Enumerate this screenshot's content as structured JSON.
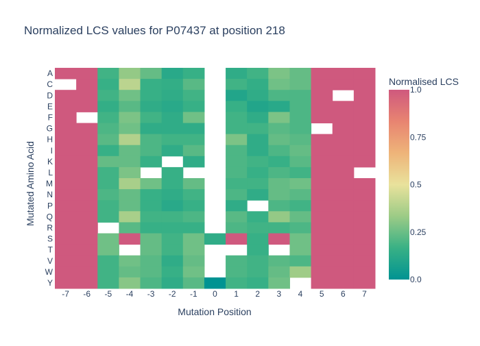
{
  "chart_data": {
    "type": "heatmap",
    "title": "Normalized LCS values for P07437 at position 218",
    "xlabel": "Mutation Position",
    "ylabel": "Mutated Amino Acid",
    "x": [
      "-7",
      "-6",
      "-5",
      "-4",
      "-3",
      "-2",
      "-1",
      "0",
      "1",
      "2",
      "3",
      "4",
      "5",
      "6",
      "7"
    ],
    "y": [
      "A",
      "C",
      "D",
      "E",
      "F",
      "G",
      "H",
      "I",
      "K",
      "L",
      "M",
      "N",
      "P",
      "Q",
      "R",
      "S",
      "T",
      "V",
      "W",
      "Y"
    ],
    "z": [
      [
        1.0,
        1.0,
        0.18,
        0.32,
        0.24,
        0.12,
        0.16,
        null,
        0.14,
        0.18,
        0.28,
        0.24,
        1.0,
        1.0,
        1.0
      ],
      [
        null,
        1.0,
        0.16,
        0.4,
        0.16,
        0.15,
        0.22,
        null,
        0.18,
        0.15,
        0.26,
        0.24,
        1.0,
        1.0,
        1.0
      ],
      [
        1.0,
        1.0,
        0.18,
        0.26,
        0.16,
        0.14,
        0.18,
        null,
        0.1,
        0.14,
        0.2,
        0.2,
        1.0,
        null,
        1.0
      ],
      [
        1.0,
        1.0,
        0.15,
        0.22,
        0.14,
        0.12,
        0.16,
        null,
        0.16,
        0.1,
        0.12,
        0.2,
        1.0,
        1.0,
        1.0
      ],
      [
        1.0,
        null,
        0.18,
        0.28,
        0.18,
        0.14,
        0.26,
        null,
        0.18,
        0.14,
        0.28,
        0.2,
        1.0,
        1.0,
        1.0
      ],
      [
        1.0,
        1.0,
        0.2,
        0.26,
        0.14,
        0.14,
        0.14,
        null,
        0.18,
        0.18,
        0.22,
        0.2,
        null,
        1.0,
        1.0
      ],
      [
        1.0,
        1.0,
        0.22,
        0.38,
        0.2,
        0.18,
        0.18,
        null,
        0.28,
        0.14,
        0.24,
        0.22,
        1.0,
        1.0,
        1.0
      ],
      [
        1.0,
        1.0,
        0.16,
        0.24,
        0.2,
        0.14,
        0.22,
        null,
        0.2,
        0.14,
        0.2,
        0.24,
        1.0,
        1.0,
        1.0
      ],
      [
        1.0,
        1.0,
        0.24,
        0.24,
        0.16,
        null,
        0.14,
        null,
        0.2,
        0.18,
        0.16,
        0.22,
        1.0,
        1.0,
        1.0
      ],
      [
        1.0,
        1.0,
        0.18,
        0.28,
        null,
        0.16,
        null,
        null,
        0.2,
        0.16,
        0.2,
        0.18,
        1.0,
        1.0,
        null
      ],
      [
        1.0,
        1.0,
        0.18,
        0.36,
        0.26,
        0.16,
        0.24,
        null,
        0.18,
        0.18,
        0.24,
        0.26,
        1.0,
        1.0,
        1.0
      ],
      [
        1.0,
        1.0,
        0.2,
        0.24,
        0.16,
        0.14,
        0.18,
        null,
        0.2,
        0.14,
        0.24,
        0.22,
        1.0,
        1.0,
        1.0
      ],
      [
        1.0,
        1.0,
        0.18,
        0.24,
        0.16,
        0.12,
        0.16,
        null,
        0.14,
        null,
        0.2,
        0.18,
        1.0,
        1.0,
        1.0
      ],
      [
        1.0,
        1.0,
        0.18,
        0.36,
        0.18,
        0.18,
        0.2,
        null,
        0.22,
        0.16,
        0.32,
        0.24,
        1.0,
        1.0,
        1.0
      ],
      [
        1.0,
        1.0,
        null,
        0.22,
        0.16,
        0.16,
        0.16,
        null,
        0.2,
        0.18,
        0.18,
        0.2,
        1.0,
        1.0,
        1.0
      ],
      [
        1.0,
        1.0,
        0.26,
        1.0,
        0.24,
        0.18,
        0.26,
        0.14,
        1.0,
        0.16,
        1.0,
        0.26,
        1.0,
        1.0,
        1.0
      ],
      [
        1.0,
        1.0,
        0.26,
        null,
        0.24,
        0.18,
        0.26,
        null,
        null,
        0.16,
        null,
        0.26,
        1.0,
        1.0,
        1.0
      ],
      [
        1.0,
        1.0,
        0.18,
        0.26,
        0.22,
        0.14,
        0.24,
        null,
        0.2,
        0.18,
        0.22,
        0.2,
        1.0,
        1.0,
        1.0
      ],
      [
        1.0,
        1.0,
        0.18,
        0.24,
        0.22,
        0.16,
        0.26,
        null,
        0.2,
        0.18,
        0.24,
        0.34,
        1.0,
        1.0,
        1.0
      ],
      [
        1.0,
        1.0,
        0.18,
        0.3,
        0.2,
        0.14,
        0.22,
        0.0,
        0.18,
        0.16,
        0.26,
        null,
        1.0,
        1.0,
        1.0
      ]
    ],
    "zlim": [
      0,
      1
    ],
    "colorscale": [
      [
        0.0,
        "#009392"
      ],
      [
        0.167,
        "#39b185"
      ],
      [
        0.333,
        "#9ccb86"
      ],
      [
        0.5,
        "#e9e29c"
      ],
      [
        0.667,
        "#eeb479"
      ],
      [
        0.833,
        "#e88471"
      ],
      [
        1.0,
        "#cf597e"
      ]
    ],
    "colorbar": {
      "title": "Normalised LCS",
      "ticks": [
        "0.0",
        "0.25",
        "0.5",
        "0.75",
        "1.0"
      ],
      "tickvals": [
        0,
        0.25,
        0.5,
        0.75,
        1.0
      ]
    },
    "grid": false,
    "legend": "colorbar-right"
  }
}
